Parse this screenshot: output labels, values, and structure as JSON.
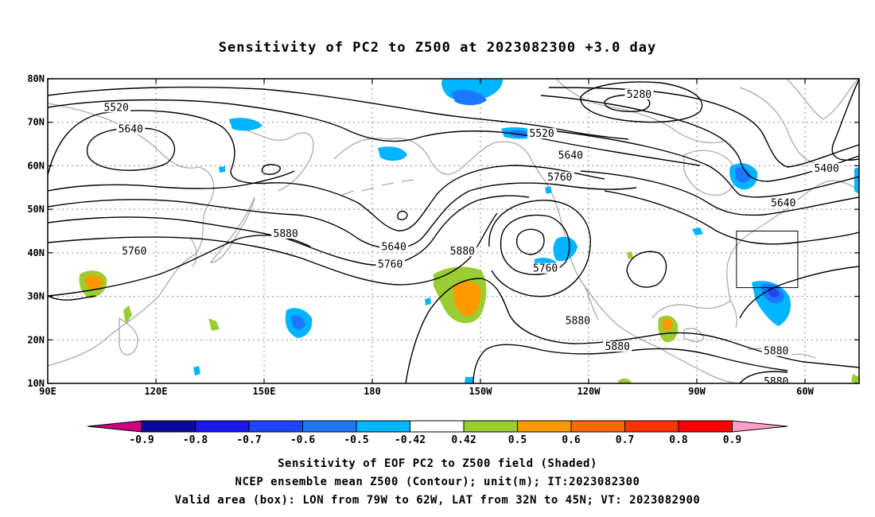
{
  "title": "Sensitivity of PC2 to Z500 at 2023082300 +3.0 day",
  "map": {
    "lon_range": [
      90,
      315
    ],
    "lat_range": [
      10,
      80
    ],
    "x_ticks": [
      {
        "lon": 90,
        "label": "90E"
      },
      {
        "lon": 120,
        "label": "120E"
      },
      {
        "lon": 150,
        "label": "150E"
      },
      {
        "lon": 180,
        "label": "180"
      },
      {
        "lon": 210,
        "label": "150W"
      },
      {
        "lon": 240,
        "label": "120W"
      },
      {
        "lon": 270,
        "label": "90W"
      },
      {
        "lon": 300,
        "label": "60W"
      }
    ],
    "y_ticks": [
      {
        "lat": 10,
        "label": "10N"
      },
      {
        "lat": 20,
        "label": "20N"
      },
      {
        "lat": 30,
        "label": "30N"
      },
      {
        "lat": 40,
        "label": "40N"
      },
      {
        "lat": 50,
        "label": "50N"
      },
      {
        "lat": 60,
        "label": "60N"
      },
      {
        "lat": 70,
        "label": "70N"
      },
      {
        "lat": 80,
        "label": "80N"
      }
    ],
    "grid": true,
    "contour_labels": [
      {
        "text": "5520",
        "lon": 109,
        "lat": 73
      },
      {
        "text": "5640",
        "lon": 113,
        "lat": 68
      },
      {
        "text": "5280",
        "lon": 254,
        "lat": 76
      },
      {
        "text": "5520",
        "lon": 227,
        "lat": 67
      },
      {
        "text": "5640",
        "lon": 235,
        "lat": 62
      },
      {
        "text": "5760",
        "lon": 232,
        "lat": 57
      },
      {
        "text": "5400",
        "lon": 306,
        "lat": 59
      },
      {
        "text": "5640",
        "lon": 294,
        "lat": 51
      },
      {
        "text": "5880",
        "lon": 156,
        "lat": 44
      },
      {
        "text": "5640",
        "lon": 186,
        "lat": 41
      },
      {
        "text": "5760",
        "lon": 185,
        "lat": 37
      },
      {
        "text": "5880",
        "lon": 205,
        "lat": 40
      },
      {
        "text": "5760",
        "lon": 228,
        "lat": 36
      },
      {
        "text": "5760",
        "lon": 114,
        "lat": 40
      },
      {
        "text": "5880",
        "lon": 237,
        "lat": 24
      },
      {
        "text": "5880",
        "lon": 248,
        "lat": 18
      },
      {
        "text": "5880",
        "lon": 292,
        "lat": 17
      },
      {
        "text": "5880",
        "lon": 292,
        "lat": 10
      }
    ],
    "valid_box": {
      "lon_min": 281,
      "lon_max": 298,
      "lat_min": 32,
      "lat_max": 45
    }
  },
  "colorbar": {
    "labels": [
      "-0.9",
      "-0.8",
      "-0.7",
      "-0.6",
      "-0.5",
      "-0.42",
      "0.42",
      "0.5",
      "0.6",
      "0.7",
      "0.8",
      "0.9"
    ],
    "colors": [
      "#0a0aa0",
      "#1a1ae6",
      "#1e46ff",
      "#1e78ff",
      "#00b4ff",
      "#ffffff",
      "#9acd32",
      "#ff9900",
      "#ff6a00",
      "#ff3300",
      "#ff0000"
    ],
    "low_end_color": "#cc0080",
    "high_end_color": "#ffa0c8"
  },
  "captions": [
    "Sensitivity of EOF PC2 to Z500 field (Shaded)",
    "NCEP ensemble mean Z500 (Contour); unit(m); IT:2023082300",
    "Valid area (box): LON from 79W to 62W, LAT from 32N to 45N; VT: 2023082900"
  ],
  "colors": {
    "coastline": "#aaaaaa",
    "contour": "#000000",
    "grid": "#888888"
  }
}
